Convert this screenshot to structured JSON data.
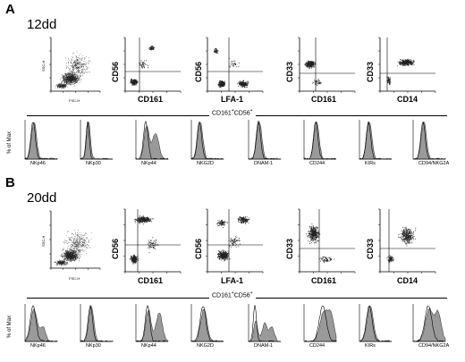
{
  "figure": {
    "panels": [
      {
        "letter": "A",
        "condition": "12dd",
        "scatter_plots": [
          {
            "y_label": "SSC-H",
            "x_label": "FSC-H",
            "x_ticks": [
              "0",
              "200",
              "400",
              "600",
              "800",
              "1000"
            ]
          },
          {
            "y_label": "CD56",
            "x_label": "CD161"
          },
          {
            "y_label": "CD56",
            "x_label": "LFA-1"
          },
          {
            "y_label": "CD33",
            "x_label": "CD161"
          },
          {
            "y_label": "CD33",
            "x_label": "CD14"
          }
        ],
        "gate_title_main": "CD161",
        "gate_title_sup1": "+",
        "gate_title_mid": "CD56",
        "gate_title_sup2": "+",
        "histogram_y_label": "% of Max",
        "histograms": [
          "NKp46",
          "NKp30",
          "NKp44",
          "NKG2D",
          "DNAM-1",
          "CD244",
          "KIRs",
          "CD94/NKG2A"
        ]
      },
      {
        "letter": "B",
        "condition": "20dd",
        "scatter_plots": [
          {
            "y_label": "SSC-H",
            "x_label": "FSC-H",
            "x_ticks": [
              "0",
              "200",
              "400",
              "600",
              "800",
              "1000"
            ]
          },
          {
            "y_label": "CD56",
            "x_label": "CD161"
          },
          {
            "y_label": "CD56",
            "x_label": "LFA-1"
          },
          {
            "y_label": "CD33",
            "x_label": "CD161"
          },
          {
            "y_label": "CD33",
            "x_label": "CD14"
          }
        ],
        "gate_title_main": "CD161",
        "gate_title_sup1": "+",
        "gate_title_mid": "CD56",
        "gate_title_sup2": "+",
        "histogram_y_label": "% of Max",
        "histograms": [
          "NKp46",
          "NKp30",
          "NKp44",
          "NKG2D",
          "DNAM-1",
          "CD244",
          "KIRs",
          "CD94/NKG2A"
        ]
      }
    ],
    "colors": {
      "ink": "#000000",
      "fill": "#9a9a9a",
      "dots": "#222222"
    }
  }
}
